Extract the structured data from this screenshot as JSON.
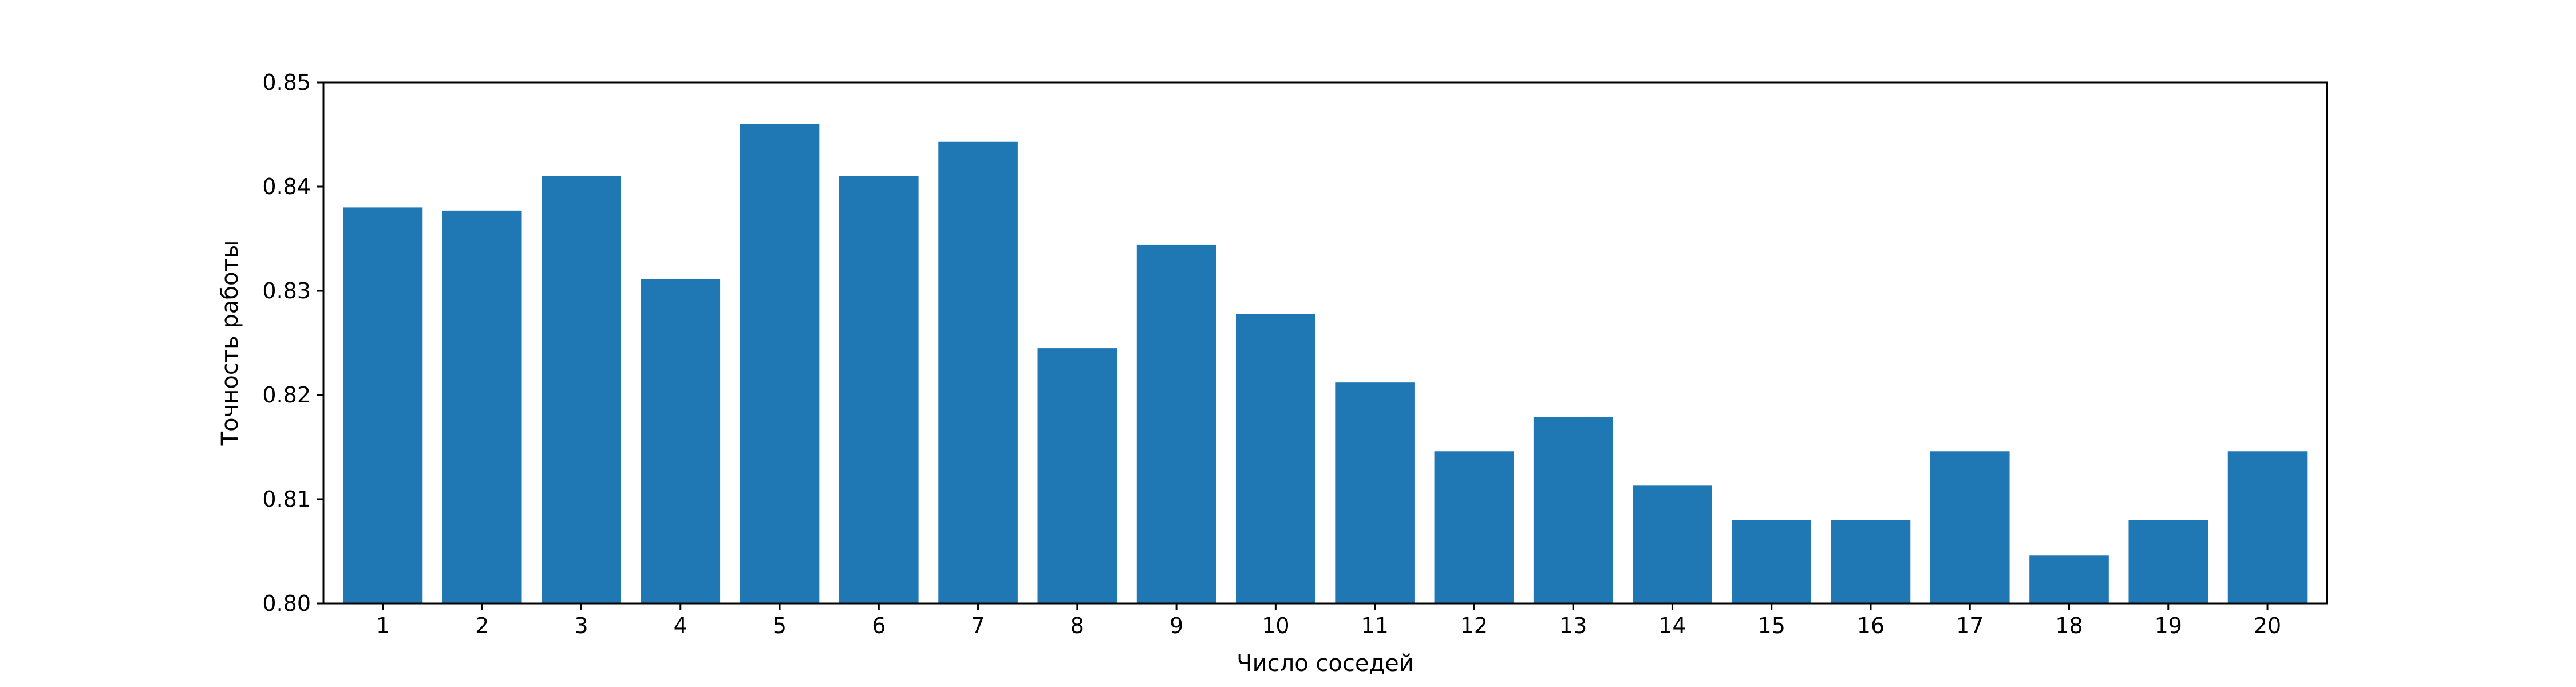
{
  "chart_data": {
    "type": "bar",
    "title": "",
    "xlabel": "Число соседей",
    "ylabel": "Точность работы",
    "categories": [
      "1",
      "2",
      "3",
      "4",
      "5",
      "6",
      "7",
      "8",
      "9",
      "10",
      "11",
      "12",
      "13",
      "14",
      "15",
      "16",
      "17",
      "18",
      "19",
      "20"
    ],
    "values": [
      0.838,
      0.8377,
      0.841,
      0.8311,
      0.846,
      0.841,
      0.8443,
      0.8245,
      0.8344,
      0.8278,
      0.8212,
      0.8146,
      0.8179,
      0.8113,
      0.808,
      0.808,
      0.8146,
      0.8046,
      0.808,
      0.8146
    ],
    "ylim": [
      0.8,
      0.85
    ],
    "yticks": [
      "0.80",
      "0.81",
      "0.82",
      "0.83",
      "0.84",
      "0.85"
    ],
    "grid": false,
    "bar_color": "#1f77b4"
  }
}
